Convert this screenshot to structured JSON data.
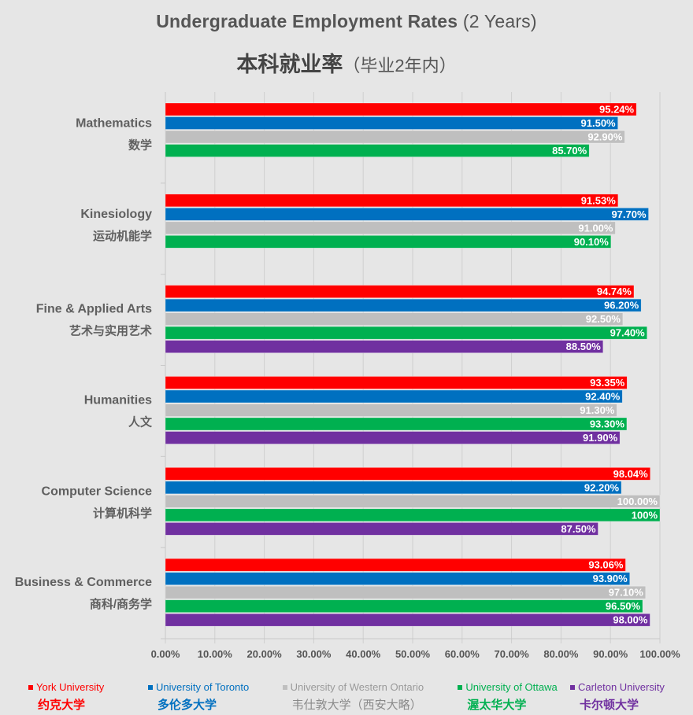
{
  "header": {
    "title_bold": "Undergraduate Employment Rates",
    "title_paren": "(2 Years)",
    "subtitle_bold": "本科就业率",
    "subtitle_paren": "（毕业2年内）"
  },
  "chart_data": {
    "type": "bar",
    "orientation": "horizontal",
    "title": "Undergraduate Employment Rates (2 Years)",
    "subtitle": "本科就业率（毕业2年内）",
    "xlabel": "",
    "ylabel": "",
    "xlim": [
      0,
      100
    ],
    "x_ticks": [
      "0.00%",
      "10.00%",
      "20.00%",
      "30.00%",
      "40.00%",
      "50.00%",
      "60.00%",
      "70.00%",
      "80.00%",
      "90.00%",
      "100.00%"
    ],
    "grid": true,
    "legend_position": "bottom",
    "categories": [
      {
        "en": "Mathematics",
        "zh": "数学"
      },
      {
        "en": "Kinesiology",
        "zh": "运动机能学"
      },
      {
        "en": "Fine & Applied Arts",
        "zh": "艺术与实用艺术"
      },
      {
        "en": "Humanities",
        "zh": "人文"
      },
      {
        "en": "Computer Science",
        "zh": "计算机科学"
      },
      {
        "en": "Business & Commerce",
        "zh": "商科/商务学"
      }
    ],
    "series": [
      {
        "name": "York University",
        "name_zh": "约克大学",
        "color": "#ff0000",
        "values": [
          95.24,
          91.53,
          94.74,
          93.35,
          98.04,
          93.06
        ],
        "labels": [
          "95.24%",
          "91.53%",
          "94.74%",
          "93.35%",
          "98.04%",
          "93.06%"
        ]
      },
      {
        "name": "University of Toronto",
        "name_zh": "多伦多大学",
        "color": "#0070c0",
        "values": [
          91.5,
          97.7,
          96.2,
          92.4,
          92.2,
          93.9
        ],
        "labels": [
          "91.50%",
          "97.70%",
          "96.20%",
          "92.40%",
          "92.20%",
          "93.90%"
        ]
      },
      {
        "name": "University of Western Ontario",
        "name_zh": "韦仕敦大学（西安大略）",
        "color": "#bfbfbf",
        "values": [
          92.9,
          91.0,
          92.5,
          91.3,
          100.0,
          97.1
        ],
        "labels": [
          "92.90%",
          "91.00%",
          "92.50%",
          "91.30%",
          "100.00%",
          "97.10%"
        ]
      },
      {
        "name": "University of Ottawa",
        "name_zh": "渥太华大学",
        "color": "#00b050",
        "values": [
          85.7,
          90.1,
          97.4,
          93.3,
          100,
          96.5
        ],
        "labels": [
          "85.70%",
          "90.10%",
          "97.40%",
          "93.30%",
          "100%",
          "96.50%"
        ]
      },
      {
        "name": "Carleton University",
        "name_zh": "卡尔顿大学",
        "color": "#7030a0",
        "values": [
          null,
          null,
          88.5,
          91.9,
          87.5,
          98.0
        ],
        "labels": [
          null,
          null,
          "88.50%",
          "91.90%",
          "87.50%",
          "98.00%"
        ]
      }
    ]
  }
}
